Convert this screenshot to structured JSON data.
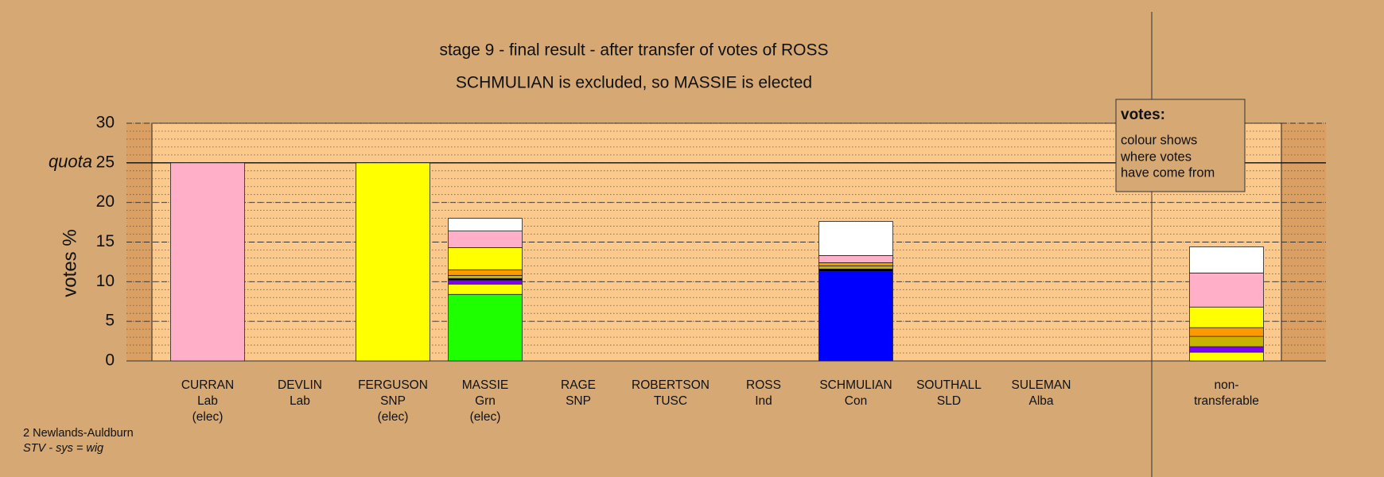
{
  "chart_data": {
    "type": "stacked-bar",
    "title": "stage 9 - final result - after transfer of votes of ROSS",
    "subtitle": "SCHMULIAN is excluded, so MASSIE is elected",
    "y_label": "votes %",
    "quota_label": "quota",
    "quota": 25,
    "ylim": [
      0,
      30
    ],
    "yticks": [
      0,
      5,
      10,
      15,
      20,
      25,
      30
    ],
    "grid": true,
    "minor_grid_step": 1,
    "categories": [
      [
        "CURRAN",
        "Lab",
        "(elec)"
      ],
      [
        "DEVLIN",
        "Lab"
      ],
      [
        "FERGUSON",
        "SNP",
        "(elec)"
      ],
      [
        "MASSIE",
        "Grn",
        "(elec)"
      ],
      [
        "RAGE",
        "SNP"
      ],
      [
        "ROBERTSON",
        "TUSC"
      ],
      [
        "ROSS",
        "Ind"
      ],
      [
        "SCHMULIAN",
        "Con"
      ],
      [
        "SOUTHALL",
        "SLD"
      ],
      [
        "SULEMAN",
        "Alba"
      ],
      [
        "non-",
        "transferable"
      ]
    ],
    "series": [
      {
        "color": "#0000ff",
        "values": [
          0,
          0,
          0,
          0,
          0,
          0,
          0,
          11.3,
          0,
          0,
          0
        ]
      },
      {
        "color": "#1eff00",
        "values": [
          0,
          0,
          0,
          8.4,
          0,
          0,
          0,
          0,
          0,
          0,
          0
        ]
      },
      {
        "color": "#ffff00",
        "values": [
          0,
          0,
          25,
          1.3,
          0,
          0,
          0,
          0,
          0,
          0,
          1.1
        ]
      },
      {
        "color": "#8000ff",
        "values": [
          0,
          0,
          0,
          0.5,
          0,
          0,
          0,
          0,
          0,
          0,
          0.7
        ]
      },
      {
        "color": "#000000",
        "values": [
          0,
          0,
          0,
          0.2,
          0,
          0,
          0,
          0.3,
          0,
          0,
          0
        ]
      },
      {
        "color": "#c8b400",
        "values": [
          0,
          0,
          0,
          0.4,
          0,
          0,
          0,
          0.4,
          0,
          0,
          1.3
        ]
      },
      {
        "color": "#ff9900",
        "values": [
          0,
          0,
          0,
          0.7,
          0,
          0,
          0,
          0.4,
          0,
          0,
          1.1
        ]
      },
      {
        "color": "#ffff00",
        "values": [
          0,
          0,
          0,
          2.8,
          0,
          0,
          0,
          0,
          0,
          0,
          2.6
        ]
      },
      {
        "color": "#ffb0c8",
        "values": [
          25,
          0,
          0,
          2.1,
          0,
          0,
          0,
          0.9,
          0,
          0,
          4.3
        ]
      },
      {
        "color": "#ffffff",
        "values": [
          0,
          0,
          0,
          1.6,
          0,
          0,
          0,
          4.3,
          0,
          0,
          3.3
        ]
      }
    ],
    "legend_box": {
      "title": "votes:",
      "lines": [
        "colour shows",
        "where votes",
        "have come from"
      ]
    },
    "footer": [
      "2 Newlands-Auldburn",
      "STV - sys = wig"
    ]
  }
}
